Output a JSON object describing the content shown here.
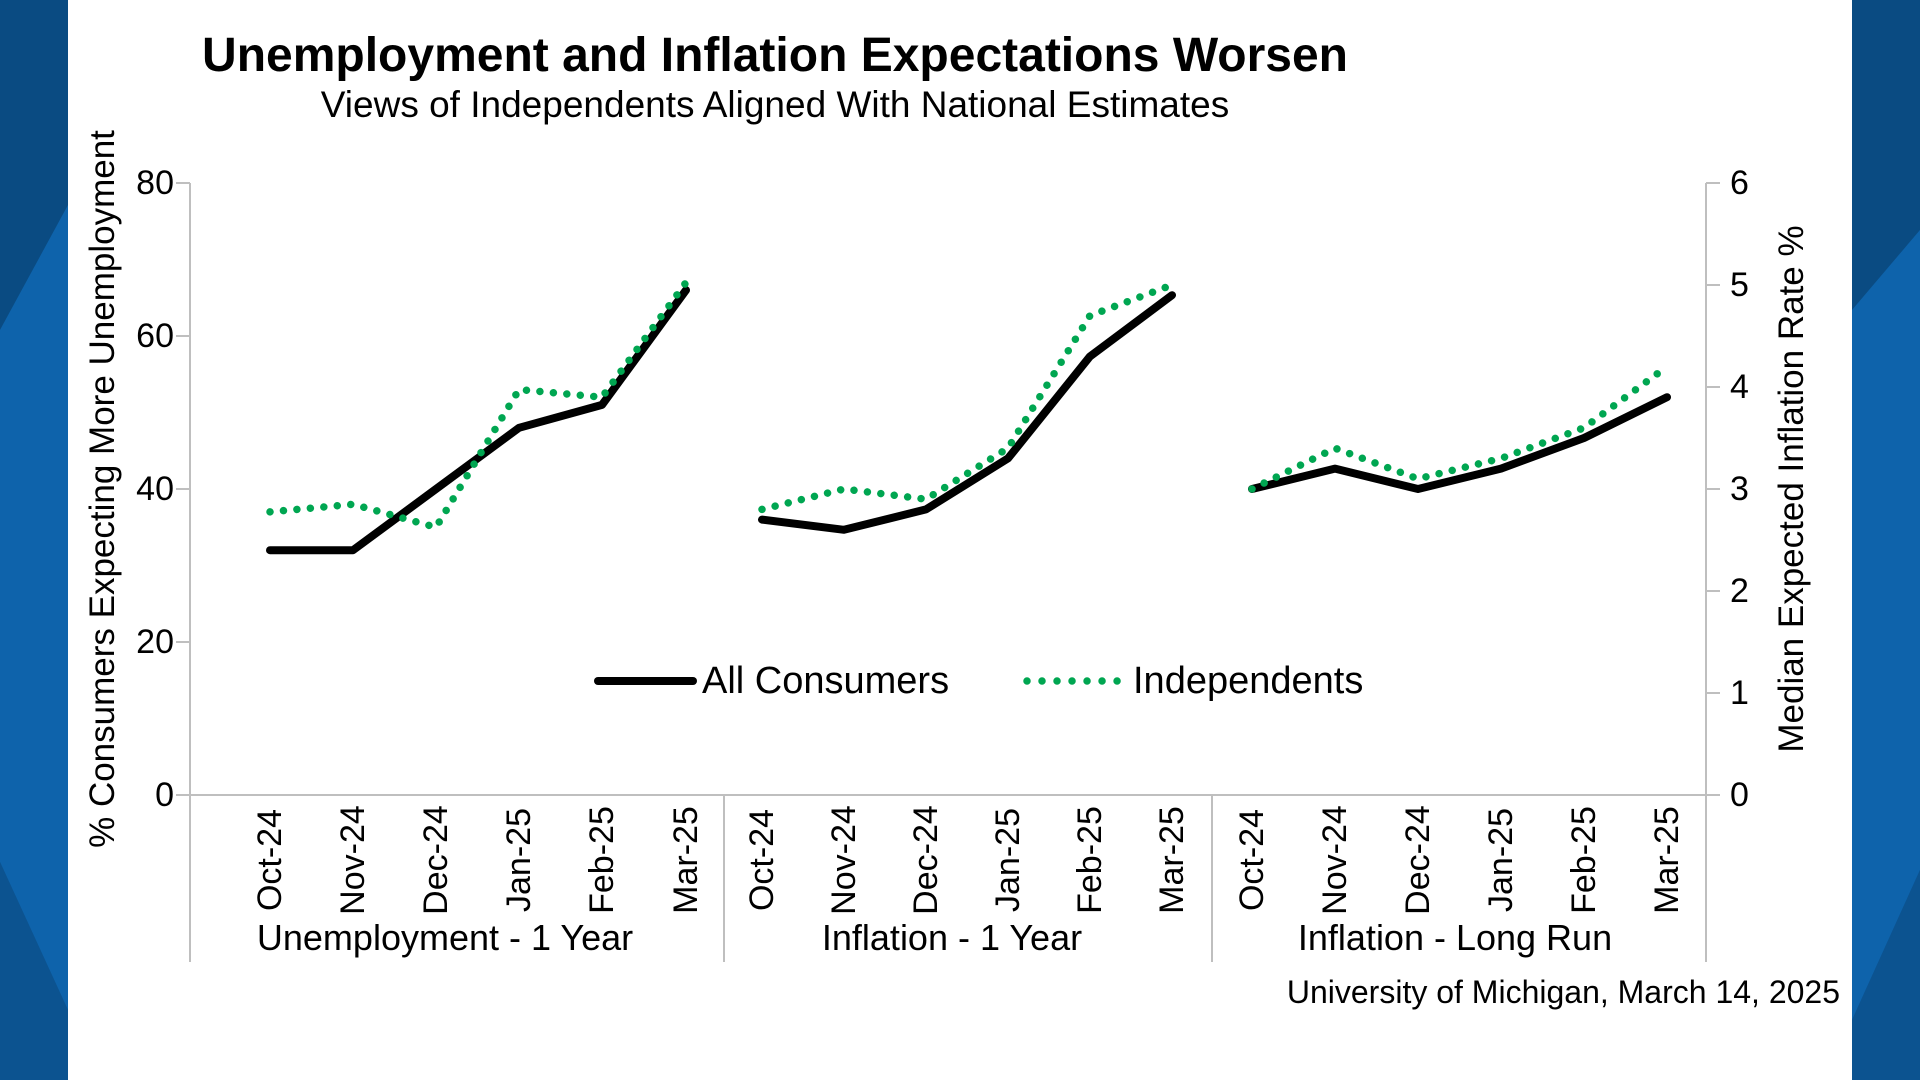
{
  "title": "Unemployment and Inflation Expectations Worsen",
  "subtitle": "Views of Independents Aligned With National Estimates",
  "source": "University of Michigan, March 14, 2025",
  "months": [
    "Oct-24",
    "Nov-24",
    "Dec-24",
    "Jan-25",
    "Feb-25",
    "Mar-25"
  ],
  "left_axis": {
    "title": "% Consumers Expecting More Unemployment",
    "ticks": [
      80,
      60,
      40,
      20,
      0
    ],
    "min": 0,
    "max": 80
  },
  "right_axis": {
    "title": "Median Expected Inflation Rate %",
    "ticks": [
      6,
      5,
      4,
      3,
      2,
      1,
      0
    ],
    "min": 0,
    "max": 6
  },
  "legend": {
    "all_consumers_label": "All Consumers",
    "independents_label": "Independents"
  },
  "colors": {
    "all_consumers": "#000000",
    "independents": "#00A651",
    "axis_line": "#BFBFBF",
    "border_base": "#0C5695",
    "border_dark": "#0A4B82",
    "border_light": "#0E63AB",
    "border_mid": "#0C5390"
  },
  "chart_data": {
    "type": "line",
    "legend_position": "inside-bottom-center",
    "grid": false,
    "x_categories_per_panel": [
      "Oct-24",
      "Nov-24",
      "Dec-24",
      "Jan-25",
      "Feb-25",
      "Mar-25"
    ],
    "panels": [
      {
        "label": "Unemployment - 1 Year",
        "axis": "left",
        "axis_range": [
          0,
          80
        ],
        "series": [
          {
            "name": "All Consumers",
            "style": "solid",
            "color": "#000000",
            "values": [
              32,
              32,
              40,
              48,
              51,
              66
            ]
          },
          {
            "name": "Independents",
            "style": "dotted",
            "color": "#00A651",
            "values": [
              37,
              38,
              35,
              53,
              52,
              67
            ]
          }
        ]
      },
      {
        "label": "Inflation - 1 Year",
        "axis": "right",
        "axis_range": [
          0,
          6
        ],
        "series": [
          {
            "name": "All Consumers",
            "style": "solid",
            "color": "#000000",
            "values": [
              2.7,
              2.6,
              2.8,
              3.3,
              4.3,
              4.9
            ]
          },
          {
            "name": "Independents",
            "style": "dotted",
            "color": "#00A651",
            "values": [
              2.8,
              3.0,
              2.9,
              3.4,
              4.7,
              5.0
            ]
          }
        ]
      },
      {
        "label": "Inflation - Long Run",
        "axis": "right",
        "axis_range": [
          0,
          6
        ],
        "series": [
          {
            "name": "All Consumers",
            "style": "solid",
            "color": "#000000",
            "values": [
              3.0,
              3.2,
              3.0,
              3.2,
              3.5,
              3.9
            ]
          },
          {
            "name": "Independents",
            "style": "dotted",
            "color": "#00A651",
            "values": [
              3.0,
              3.4,
              3.1,
              3.3,
              3.6,
              4.2
            ]
          }
        ]
      }
    ]
  }
}
